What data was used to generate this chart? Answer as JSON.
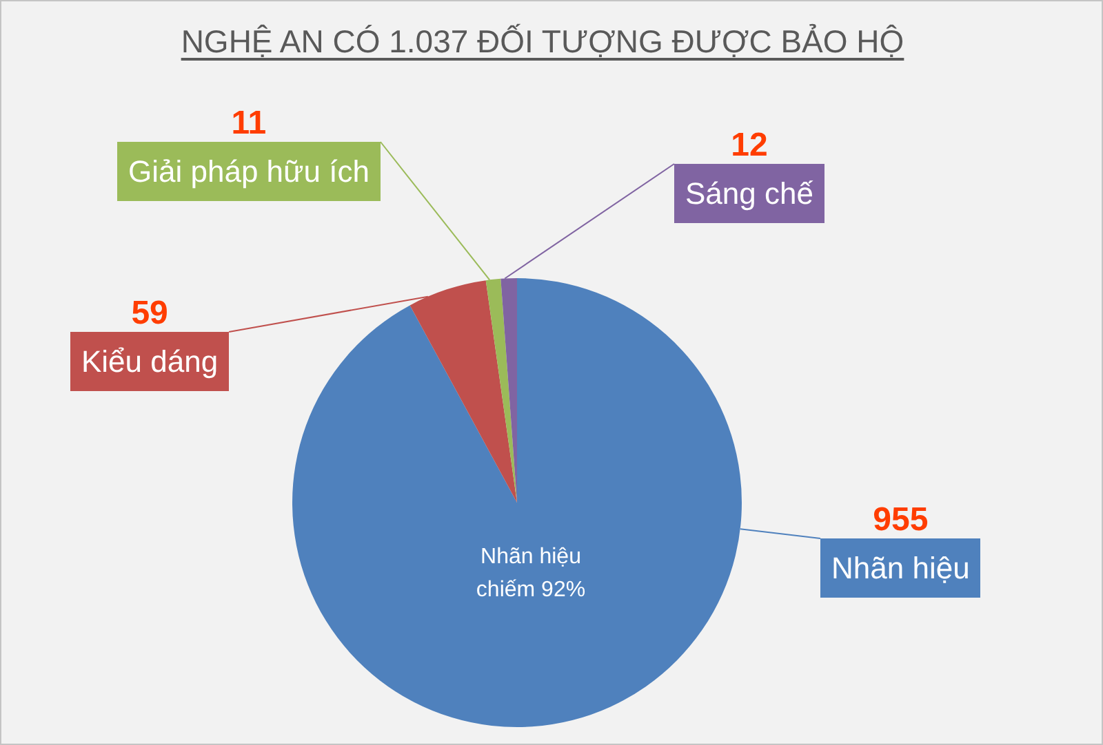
{
  "chart_data": {
    "type": "pie",
    "title": "NGHỆ AN CÓ 1.037 ĐỐI TƯỢNG ĐƯỢC BẢO HỘ",
    "categories": [
      "Nhãn hiệu",
      "Kiểu dáng",
      "Giải pháp hữu ích",
      "Sáng chế"
    ],
    "values": [
      955,
      59,
      11,
      12
    ],
    "colors": [
      "#4f81bd",
      "#c0504d",
      "#9bbb59",
      "#8064a2"
    ],
    "data_labels": true,
    "annotations": [
      "Nhãn hiệu chiếm 92%"
    ]
  }
}
